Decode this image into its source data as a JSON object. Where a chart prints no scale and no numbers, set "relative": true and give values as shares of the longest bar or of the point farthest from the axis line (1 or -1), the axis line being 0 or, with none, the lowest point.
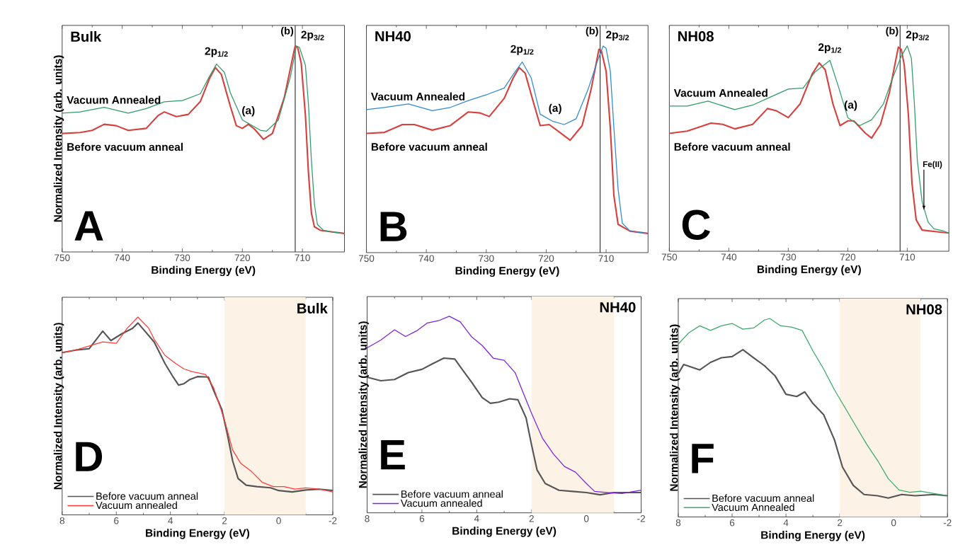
{
  "chart_data": [
    {
      "type": "line",
      "relative": true,
      "title": "Bulk",
      "xlabel": "Binding Energy (eV)",
      "ylabel": "Normalized Intensity (arb. units)",
      "xlim": [
        750,
        703
      ],
      "xticks": [
        750,
        740,
        730,
        720,
        710
      ],
      "legend": false,
      "ref_lines": [
        {
          "axis": "x",
          "value": 711.2,
          "label": "(b)"
        }
      ],
      "annotations": [
        "A",
        {
          "text": "2p$_{1/2}$",
          "x": 724.3,
          "y": 0.912
        },
        {
          "text": "(a)",
          "x": 719,
          "y": 0.624
        },
        "2p$_{3/2}$"
      ],
      "series": [
        {
          "name": "Before vacuum anneal",
          "color": "#d6403f",
          "x": [
            750,
            747,
            745,
            743,
            741,
            739,
            736,
            734,
            733,
            731,
            729,
            727,
            725.5,
            724.5,
            723.5,
            722,
            721,
            720,
            719,
            718,
            716.5,
            715,
            713,
            711.5,
            711.2,
            710.8,
            710.2,
            709.5,
            709,
            708.5,
            708,
            707,
            705,
            703
          ],
          "values": [
            0.575,
            0.58,
            0.59,
            0.62,
            0.613,
            0.59,
            0.6,
            0.663,
            0.68,
            0.657,
            0.668,
            0.73,
            0.84,
            0.895,
            0.862,
            0.707,
            0.613,
            0.6,
            0.62,
            0.597,
            0.547,
            0.575,
            0.751,
            0.961,
            1.0,
            0.994,
            0.917,
            0.663,
            0.387,
            0.188,
            0.122,
            0.105,
            0.097,
            0.09
          ]
        },
        {
          "name": "Vacuum Annealed",
          "color": "#2e9c6a",
          "x": [
            750,
            747,
            743,
            739,
            736,
            733,
            730,
            727,
            725.5,
            724.3,
            723,
            722,
            720,
            719,
            717,
            716,
            714,
            712,
            711,
            710.5,
            709.5,
            709,
            708.5,
            708,
            707.5,
            706.5,
            705,
            703
          ],
          "values": [
            0.674,
            0.68,
            0.702,
            0.674,
            0.696,
            0.729,
            0.735,
            0.768,
            0.851,
            0.912,
            0.873,
            0.773,
            0.641,
            0.624,
            0.591,
            0.586,
            0.641,
            0.851,
            1.0,
            0.994,
            0.906,
            0.718,
            0.442,
            0.232,
            0.133,
            0.105,
            0.097,
            0.09
          ]
        }
      ]
    },
    {
      "type": "line",
      "relative": true,
      "title": "NH40",
      "xlabel": "Binding Energy (eV)",
      "xlim": [
        750,
        703
      ],
      "xticks": [
        750,
        740,
        730,
        720,
        710
      ],
      "legend": false,
      "ref_lines": [
        {
          "axis": "x",
          "value": 711.0,
          "label": "(b)"
        }
      ],
      "annotations": [
        "B",
        {
          "text": "2p$_{1/2}$",
          "x": 724,
          "y": 0.923
        },
        {
          "text": "(a)",
          "x": 718.5,
          "y": 0.637
        },
        "2p$_{3/2}$"
      ],
      "series": [
        {
          "name": "Before vacuum anneal",
          "color": "#d6403f",
          "x": [
            750,
            747,
            744,
            742,
            739,
            736,
            733,
            731,
            729.5,
            727,
            725.5,
            724.5,
            723.5,
            722,
            721,
            719.5,
            718,
            716,
            714,
            712.5,
            711.2,
            710.8,
            710,
            709.3,
            708.7,
            708,
            706,
            703
          ],
          "values": [
            0.577,
            0.582,
            0.62,
            0.62,
            0.593,
            0.615,
            0.681,
            0.676,
            0.659,
            0.747,
            0.846,
            0.896,
            0.868,
            0.714,
            0.615,
            0.62,
            0.588,
            0.544,
            0.615,
            0.791,
            0.984,
            0.978,
            0.879,
            0.604,
            0.275,
            0.137,
            0.104,
            0.093
          ]
        },
        {
          "name": "Vacuum Annealed",
          "color": "#2e8ad0",
          "x": [
            750,
            747,
            743,
            739,
            736,
            733,
            730,
            727,
            725.5,
            724,
            722.5,
            721,
            719,
            717,
            715,
            713,
            711.5,
            710.5,
            710,
            709.3,
            708.7,
            708,
            707.3,
            706,
            703
          ],
          "values": [
            0.692,
            0.703,
            0.72,
            0.687,
            0.703,
            0.736,
            0.764,
            0.797,
            0.863,
            0.923,
            0.846,
            0.67,
            0.637,
            0.62,
            0.648,
            0.791,
            0.923,
            1.0,
            0.989,
            0.879,
            0.604,
            0.308,
            0.143,
            0.104,
            0.093
          ]
        }
      ]
    },
    {
      "type": "line",
      "relative": true,
      "title": "NH08",
      "xlabel": "Binding Energy (eV)",
      "xlim": [
        750,
        703
      ],
      "xticks": [
        750,
        740,
        730,
        720,
        710
      ],
      "legend": false,
      "ref_lines": [
        {
          "axis": "x",
          "value": 711.2,
          "label": "(b)"
        }
      ],
      "annotations": [
        "C",
        {
          "text": "2p$_{1/2}$",
          "x": 723,
          "y": 0.93
        },
        {
          "text": "(a)",
          "x": 719.5,
          "y": 0.65
        },
        "2p$_{3/2}$",
        {
          "text": "Fe(II)",
          "x": 707.2,
          "y": 0.2
        }
      ],
      "series": [
        {
          "name": "Before vacuum anneal",
          "color": "#d6403f",
          "x": [
            750,
            747,
            743,
            741,
            739,
            736,
            733.5,
            732,
            730,
            728,
            726,
            724.8,
            723.8,
            722.5,
            721.3,
            720,
            719,
            717,
            716,
            714.5,
            713,
            711.5,
            711,
            710.5,
            709.8,
            709.2,
            708.5,
            707.5,
            705,
            703
          ],
          "values": [
            0.574,
            0.585,
            0.624,
            0.618,
            0.596,
            0.618,
            0.695,
            0.684,
            0.651,
            0.718,
            0.862,
            0.917,
            0.884,
            0.718,
            0.612,
            0.635,
            0.635,
            0.574,
            0.551,
            0.618,
            0.773,
            0.994,
            0.983,
            0.906,
            0.662,
            0.33,
            0.153,
            0.103,
            0.095,
            0.089
          ]
        },
        {
          "name": "Vacuum Annealed",
          "color": "#2e9c6a",
          "x": [
            750,
            747,
            743.5,
            739,
            736,
            733,
            730,
            727.5,
            725.5,
            723,
            721.5,
            720,
            718,
            716,
            714,
            712.5,
            711,
            710,
            709.3,
            708.8,
            708.3,
            707.5,
            706.5,
            705.5,
            704,
            703
          ],
          "values": [
            0.707,
            0.707,
            0.731,
            0.69,
            0.712,
            0.751,
            0.79,
            0.795,
            0.873,
            0.93,
            0.795,
            0.651,
            0.612,
            0.64,
            0.718,
            0.84,
            0.95,
            1.0,
            0.939,
            0.718,
            0.441,
            0.241,
            0.142,
            0.109,
            0.1,
            0.089
          ]
        }
      ]
    },
    {
      "type": "line",
      "relative": true,
      "title": "Bulk",
      "xlabel": "Binding Energy (eV)",
      "ylabel": "Normalized Intensity (arb. units)",
      "xlim": [
        8,
        -2
      ],
      "xticks": [
        8,
        6,
        4,
        2,
        0,
        -2
      ],
      "legend": "bottom left",
      "bands": [
        {
          "axis": "x",
          "from": 2,
          "to": -1,
          "color": "#fdf2e6"
        }
      ],
      "annotations": [
        "D"
      ],
      "series": [
        {
          "name": "Before vacuum anneal",
          "color": "#555555",
          "x": [
            8,
            7.5,
            7,
            6.5,
            6.2,
            5.8,
            5.4,
            5.2,
            4.9,
            4.6,
            4.2,
            3.9,
            3.7,
            3.5,
            3.3,
            3,
            2.6,
            2.4,
            2.1,
            1.9,
            1.7,
            1.5,
            1.2,
            0.8,
            0.3,
            0,
            -0.5,
            -1,
            -1.5,
            -2
          ],
          "values": [
            0.82,
            0.833,
            0.84,
            0.929,
            0.881,
            0.915,
            0.943,
            0.97,
            0.922,
            0.874,
            0.765,
            0.697,
            0.656,
            0.663,
            0.683,
            0.699,
            0.697,
            0.628,
            0.533,
            0.41,
            0.273,
            0.184,
            0.15,
            0.143,
            0.137,
            0.123,
            0.116,
            0.126,
            0.13,
            0.123
          ]
        },
        {
          "name": "Vacuum annealed",
          "color": "#ff3b3b",
          "x": [
            8,
            7.5,
            7,
            6.5,
            6,
            5.6,
            5.2,
            4.8,
            4.6,
            4.2,
            3.8,
            3.5,
            3.2,
            2.7,
            2.4,
            2,
            1.7,
            1.4,
            1,
            0.6,
            0.2,
            -0.2,
            -0.6,
            -1,
            -1.5,
            -2
          ],
          "values": [
            0.82,
            0.833,
            0.854,
            0.874,
            0.867,
            0.943,
            1.0,
            0.943,
            0.888,
            0.806,
            0.765,
            0.738,
            0.724,
            0.71,
            0.642,
            0.478,
            0.328,
            0.26,
            0.219,
            0.164,
            0.143,
            0.143,
            0.13,
            0.137,
            0.13,
            0.116
          ]
        }
      ]
    },
    {
      "type": "line",
      "relative": true,
      "title": "NH40",
      "xlabel": "Binding Energy (eV)",
      "ylabel": "Normalized Intensity (arb. units)",
      "xlim": [
        8,
        -2
      ],
      "xticks": [
        8,
        6,
        4,
        2,
        0,
        -2
      ],
      "legend": "bottom left",
      "bands": [
        {
          "axis": "x",
          "from": 2,
          "to": -1,
          "color": "#fdf2e6"
        }
      ],
      "annotations": [
        "E"
      ],
      "series": [
        {
          "name": "Before vacuum anneal",
          "color": "#555555",
          "x": [
            8,
            7.5,
            7,
            6.5,
            6,
            5.6,
            5.2,
            4.8,
            4.5,
            4.2,
            3.8,
            3.5,
            3.2,
            2.8,
            2.5,
            2.2,
            2,
            1.8,
            1.5,
            1,
            0.5,
            0,
            -0.5,
            -1,
            -2
          ],
          "values": [
            0.69,
            0.672,
            0.678,
            0.713,
            0.73,
            0.759,
            0.787,
            0.782,
            0.724,
            0.667,
            0.586,
            0.557,
            0.563,
            0.58,
            0.575,
            0.483,
            0.345,
            0.218,
            0.149,
            0.115,
            0.109,
            0.103,
            0.092,
            0.103,
            0.103
          ]
        },
        {
          "name": "Vacuum annealed",
          "color": "#7b22d8",
          "x": [
            8,
            7.5,
            7,
            6.6,
            6.2,
            5.8,
            5.4,
            5,
            4.6,
            4.2,
            3.8,
            3.4,
            3,
            2.6,
            2.3,
            2,
            1.6,
            1.2,
            0.8,
            0.4,
            0,
            -0.3,
            -0.8,
            -1.3,
            -2
          ],
          "values": [
            0.839,
            0.879,
            0.931,
            0.897,
            0.925,
            0.966,
            0.977,
            1.0,
            0.971,
            0.897,
            0.851,
            0.787,
            0.776,
            0.713,
            0.609,
            0.506,
            0.379,
            0.299,
            0.236,
            0.207,
            0.149,
            0.109,
            0.103,
            0.098,
            0.115
          ]
        }
      ]
    },
    {
      "type": "line",
      "relative": true,
      "title": "NH08",
      "xlabel": "Binding Energy (eV)",
      "ylabel": "Normalized Intensity (arb. units)",
      "xlim": [
        8,
        -2
      ],
      "xticks": [
        8,
        6,
        4,
        2,
        0,
        -2
      ],
      "legend": "bottom left",
      "bands": [
        {
          "axis": "x",
          "from": 2,
          "to": -1,
          "color": "#fdf2e6"
        }
      ],
      "annotations": [
        "F"
      ],
      "series": [
        {
          "name": "Before vacuum anneal",
          "color": "#555555",
          "x": [
            8,
            7.8,
            7.2,
            6.8,
            6.4,
            6,
            5.6,
            5.2,
            4.8,
            4.4,
            4,
            3.6,
            3.3,
            3,
            2.6,
            2.2,
            1.9,
            1.5,
            1.1,
            0.6,
            0.2,
            -0.3,
            -0.8,
            -1.5,
            -2
          ],
          "values": [
            0.722,
            0.768,
            0.741,
            0.779,
            0.802,
            0.808,
            0.843,
            0.802,
            0.762,
            0.71,
            0.618,
            0.607,
            0.63,
            0.572,
            0.515,
            0.389,
            0.251,
            0.159,
            0.113,
            0.107,
            0.095,
            0.113,
            0.107,
            0.113,
            0.107
          ]
        },
        {
          "name": "Vacuum Annealed",
          "color": "#3aa86a",
          "x": [
            8,
            7.6,
            7.2,
            6.8,
            6.4,
            6,
            5.6,
            5.2,
            4.8,
            4.6,
            4.2,
            3.8,
            3.4,
            3,
            2.6,
            2.2,
            1.8,
            1.4,
            1,
            0.6,
            0.2,
            -0.2,
            -0.6,
            -1,
            -1.5,
            -2
          ],
          "values": [
            0.871,
            0.929,
            0.963,
            0.94,
            0.963,
            0.975,
            0.946,
            0.952,
            0.992,
            1.0,
            0.963,
            0.957,
            0.94,
            0.837,
            0.745,
            0.641,
            0.549,
            0.457,
            0.366,
            0.285,
            0.193,
            0.136,
            0.124,
            0.13,
            0.118,
            0.107
          ]
        }
      ]
    }
  ]
}
